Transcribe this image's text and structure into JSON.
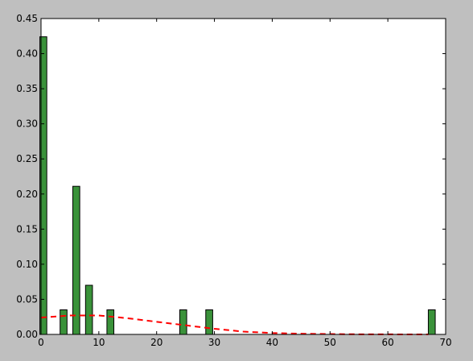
{
  "chart_data": {
    "type": "bar",
    "title": "",
    "xlabel": "",
    "ylabel": "",
    "xlim": [
      0,
      70
    ],
    "ylim": [
      0,
      0.45
    ],
    "grid": false,
    "xticks": [
      0,
      10,
      20,
      30,
      40,
      50,
      60,
      70
    ],
    "xtick_labels": [
      "0",
      "10",
      "20",
      "30",
      "40",
      "50",
      "60",
      "70"
    ],
    "yticks": [
      0.0,
      0.05,
      0.1,
      0.15,
      0.2,
      0.25,
      0.3,
      0.35,
      0.4,
      0.45
    ],
    "ytick_labels": [
      "0.00",
      "0.05",
      "0.10",
      "0.15",
      "0.20",
      "0.25",
      "0.30",
      "0.35",
      "0.40",
      "0.45"
    ],
    "bars": {
      "x_centers": [
        0.4,
        3.9,
        6.1,
        8.3,
        12.0,
        24.6,
        29.1,
        67.6
      ],
      "bar_width": 1.2,
      "values": [
        0.424,
        0.035,
        0.211,
        0.07,
        0.035,
        0.035,
        0.035,
        0.035
      ],
      "color": "#3a923a",
      "edge_color": "#000000"
    },
    "curve": {
      "style": "dashed",
      "color": "#ff0000",
      "x": [
        0,
        5,
        10,
        15,
        20,
        25,
        30,
        35,
        40,
        45,
        50,
        55,
        60,
        65,
        67
      ],
      "y": [
        0.024,
        0.027,
        0.027,
        0.023,
        0.018,
        0.013,
        0.008,
        0.004,
        0.002,
        0.001,
        0.0005,
        0.0002,
        0.0001,
        0.0,
        0.0
      ]
    }
  }
}
